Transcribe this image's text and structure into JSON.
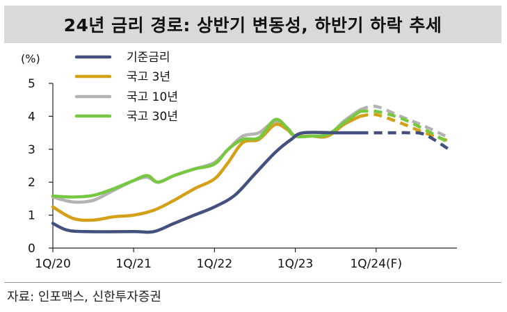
{
  "title": "24년 금리 경로: 상반기 변동성, 하반기 하락 추세",
  "source": "자료: 인포맥스, 신한투자증권",
  "chart_data": {
    "type": "line",
    "ylabel": "(%)",
    "xlabel": "",
    "ylim": [
      0,
      5
    ],
    "yticks": [
      "0",
      "1",
      "2",
      "3",
      "4",
      "5"
    ],
    "xticks": [
      {
        "label": "1Q/20",
        "x": 2020.0
      },
      {
        "label": "1Q/21",
        "x": 2021.0
      },
      {
        "label": "1Q/22",
        "x": 2022.0
      },
      {
        "label": "1Q/23",
        "x": 2023.0
      },
      {
        "label": "1Q/24(F)",
        "x": 2024.0
      }
    ],
    "xlim": [
      2020.0,
      2025.0
    ],
    "forecast_start": 2023.8,
    "legend_position": "top-left",
    "series": [
      {
        "name": "기준금리",
        "color": "#44507e",
        "points": [
          [
            2020.0,
            0.75
          ],
          [
            2020.17,
            0.55
          ],
          [
            2020.4,
            0.5
          ],
          [
            2021.0,
            0.5
          ],
          [
            2021.25,
            0.5
          ],
          [
            2021.5,
            0.75
          ],
          [
            2021.75,
            1.0
          ],
          [
            2022.0,
            1.25
          ],
          [
            2022.25,
            1.6
          ],
          [
            2022.5,
            2.25
          ],
          [
            2022.75,
            2.9
          ],
          [
            2022.95,
            3.3
          ],
          [
            2023.1,
            3.5
          ],
          [
            2023.5,
            3.5
          ],
          [
            2023.8,
            3.5
          ],
          [
            2024.2,
            3.5
          ],
          [
            2024.4,
            3.5
          ],
          [
            2024.6,
            3.45
          ],
          [
            2024.9,
            3.0
          ]
        ]
      },
      {
        "name": "국고 3년",
        "color": "#d4a017",
        "points": [
          [
            2020.0,
            1.25
          ],
          [
            2020.25,
            0.9
          ],
          [
            2020.5,
            0.85
          ],
          [
            2020.75,
            0.95
          ],
          [
            2021.0,
            1.0
          ],
          [
            2021.25,
            1.15
          ],
          [
            2021.5,
            1.45
          ],
          [
            2021.75,
            1.8
          ],
          [
            2022.0,
            2.1
          ],
          [
            2022.17,
            2.6
          ],
          [
            2022.35,
            3.2
          ],
          [
            2022.55,
            3.3
          ],
          [
            2022.75,
            3.75
          ],
          [
            2022.9,
            3.6
          ],
          [
            2023.0,
            3.4
          ],
          [
            2023.2,
            3.4
          ],
          [
            2023.4,
            3.4
          ],
          [
            2023.6,
            3.75
          ],
          [
            2023.8,
            4.0
          ],
          [
            2024.0,
            4.05
          ],
          [
            2024.3,
            3.8
          ],
          [
            2024.6,
            3.5
          ],
          [
            2024.9,
            3.25
          ]
        ]
      },
      {
        "name": "국고 10년",
        "color": "#b3b3b3",
        "points": [
          [
            2020.0,
            1.55
          ],
          [
            2020.25,
            1.4
          ],
          [
            2020.5,
            1.45
          ],
          [
            2020.75,
            1.75
          ],
          [
            2021.0,
            2.05
          ],
          [
            2021.17,
            2.15
          ],
          [
            2021.3,
            2.0
          ],
          [
            2021.5,
            2.2
          ],
          [
            2021.75,
            2.4
          ],
          [
            2022.0,
            2.6
          ],
          [
            2022.17,
            3.0
          ],
          [
            2022.35,
            3.4
          ],
          [
            2022.55,
            3.5
          ],
          [
            2022.75,
            3.85
          ],
          [
            2022.9,
            3.6
          ],
          [
            2023.0,
            3.4
          ],
          [
            2023.2,
            3.4
          ],
          [
            2023.4,
            3.4
          ],
          [
            2023.6,
            3.85
          ],
          [
            2023.8,
            4.2
          ],
          [
            2024.0,
            4.3
          ],
          [
            2024.3,
            4.0
          ],
          [
            2024.6,
            3.7
          ],
          [
            2024.9,
            3.35
          ]
        ]
      },
      {
        "name": "국고 30년",
        "color": "#77c740",
        "points": [
          [
            2020.0,
            1.58
          ],
          [
            2020.25,
            1.55
          ],
          [
            2020.5,
            1.6
          ],
          [
            2020.75,
            1.8
          ],
          [
            2021.0,
            2.05
          ],
          [
            2021.17,
            2.2
          ],
          [
            2021.3,
            2.0
          ],
          [
            2021.5,
            2.2
          ],
          [
            2021.75,
            2.4
          ],
          [
            2022.0,
            2.55
          ],
          [
            2022.17,
            3.0
          ],
          [
            2022.35,
            3.3
          ],
          [
            2022.55,
            3.35
          ],
          [
            2022.75,
            3.9
          ],
          [
            2022.9,
            3.65
          ],
          [
            2023.0,
            3.4
          ],
          [
            2023.2,
            3.4
          ],
          [
            2023.4,
            3.45
          ],
          [
            2023.6,
            3.8
          ],
          [
            2023.8,
            4.15
          ],
          [
            2024.0,
            4.15
          ],
          [
            2024.3,
            3.95
          ],
          [
            2024.6,
            3.6
          ],
          [
            2024.9,
            3.2
          ]
        ]
      }
    ]
  }
}
